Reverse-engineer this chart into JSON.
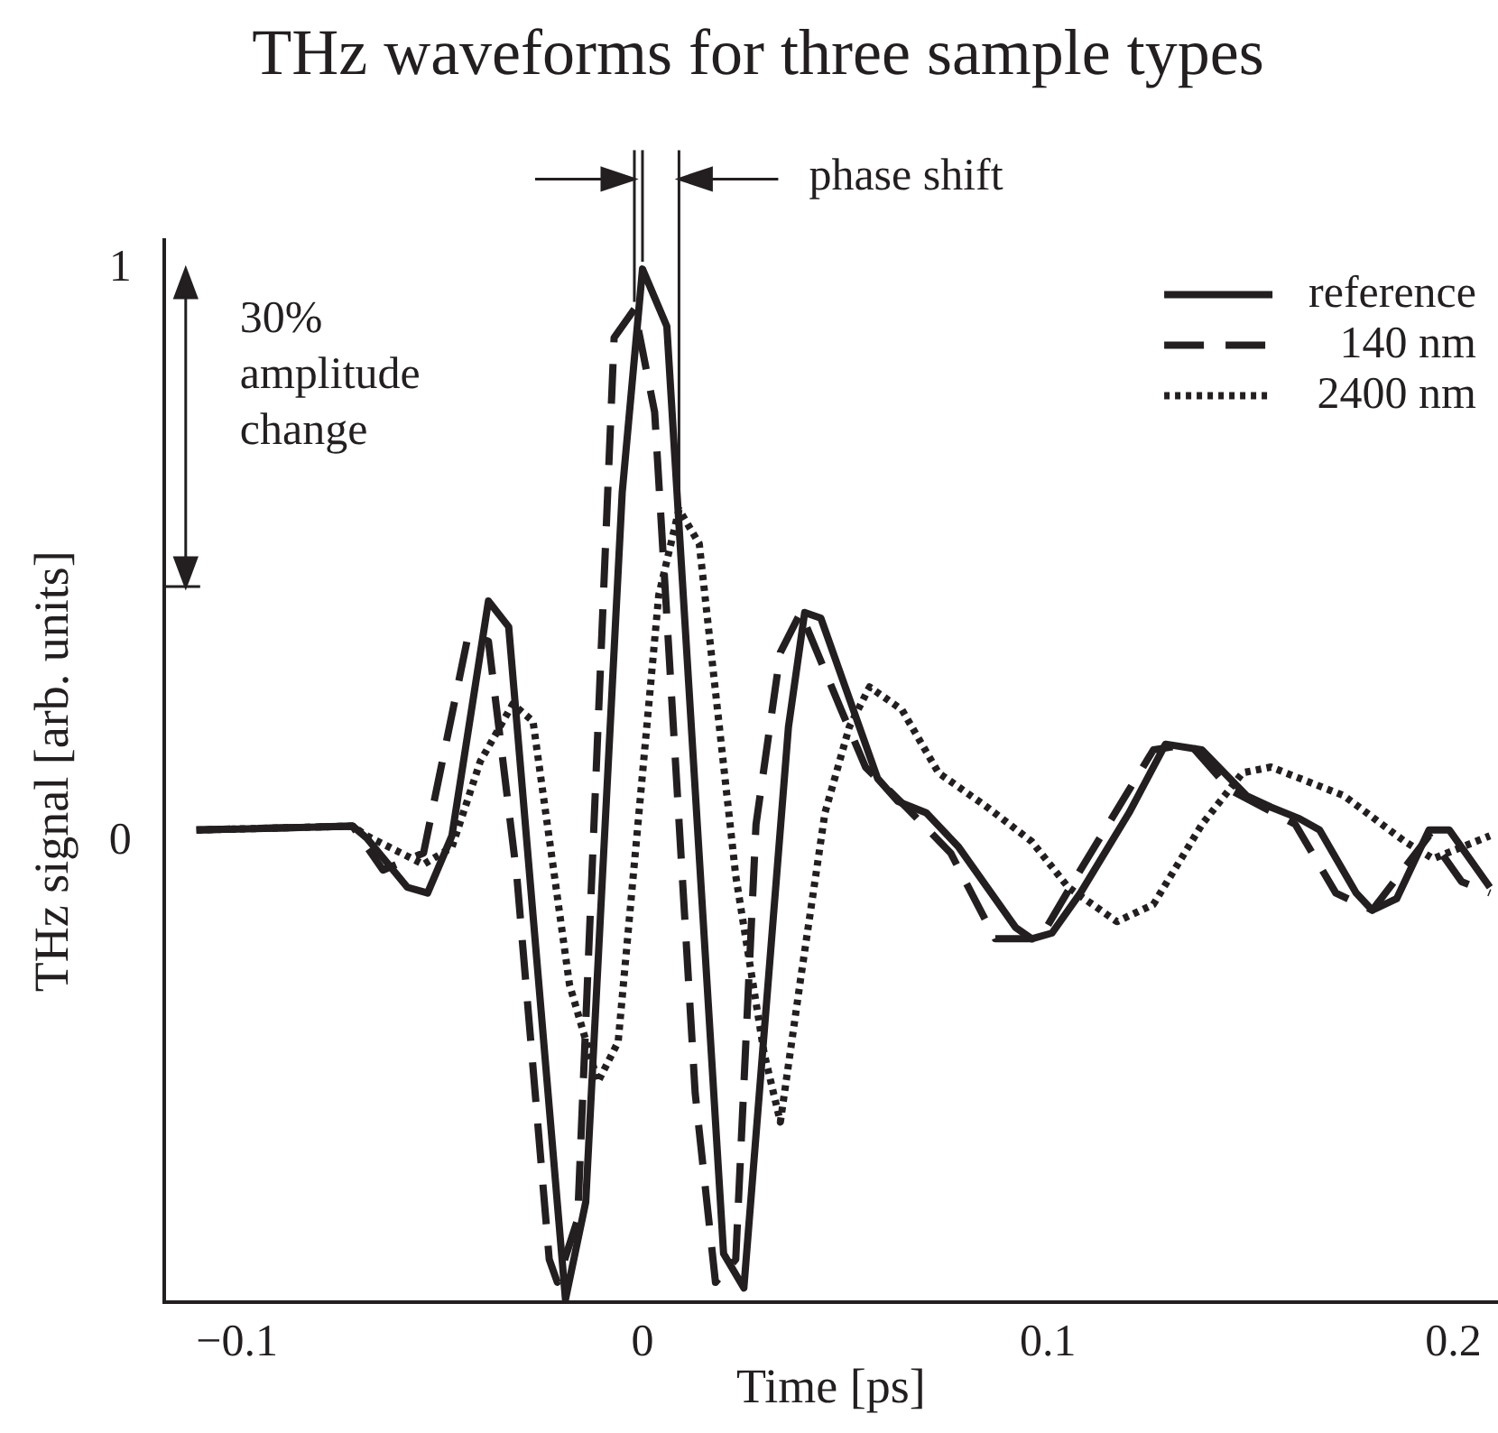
{
  "chart_data": {
    "type": "line",
    "title": "THz waveforms for three sample types",
    "xlabel": "Time [ps]",
    "ylabel": "THz signal [arb. units]",
    "xlim": [
      -0.118,
      0.211
    ],
    "xticks": [
      {
        "value": -0.1,
        "label": "−0.1"
      },
      0,
      0.1,
      0.2
    ],
    "ylim": [
      -0.805,
      1.05
    ],
    "yticks": [
      0,
      1
    ],
    "grid": false,
    "legend": "top right",
    "marker": "none",
    "series": [
      {
        "name": "reference",
        "color": "#231f20",
        "line_style": "solid",
        "x": [
          -0.11,
          -0.0715,
          -0.068,
          -0.058,
          -0.053,
          -0.047,
          -0.038,
          -0.033,
          -0.019,
          -0.014,
          -0.005,
          0.0,
          0.006,
          0.02,
          0.025,
          0.036,
          0.04,
          0.044,
          0.05,
          0.058,
          0.063,
          0.07,
          0.078,
          0.092,
          0.096,
          0.101,
          0.108,
          0.12,
          0.129,
          0.138,
          0.149,
          0.155,
          0.162,
          0.167,
          0.176,
          0.18,
          0.186,
          0.194,
          0.199,
          0.209
        ],
        "values": [
          0.02,
          0.027,
          0.006,
          -0.08,
          -0.09,
          0.01,
          0.42,
          0.375,
          -0.8,
          -0.63,
          0.61,
          1.0,
          0.9,
          -0.72,
          -0.78,
          0.2,
          0.4,
          0.39,
          0.27,
          0.11,
          0.07,
          0.05,
          -0.01,
          -0.15,
          -0.17,
          -0.16,
          -0.09,
          0.05,
          0.17,
          0.16,
          0.08,
          0.06,
          0.04,
          0.02,
          -0.09,
          -0.12,
          -0.1,
          0.02,
          0.02,
          -0.08
        ]
      },
      {
        "name": "140 nm",
        "color": "#231f20",
        "line_style": "dashed",
        "x": [
          -0.11,
          -0.0715,
          -0.064,
          -0.054,
          -0.043,
          -0.038,
          -0.031,
          -0.023,
          -0.021,
          -0.016,
          -0.007,
          -0.002,
          0.003,
          0.013,
          0.018,
          0.023,
          0.028,
          0.034,
          0.039,
          0.049,
          0.055,
          0.065,
          0.076,
          0.087,
          0.098,
          0.108,
          0.12,
          0.126,
          0.135,
          0.145,
          0.161,
          0.171,
          0.18,
          0.194,
          0.202,
          0.209
        ],
        "values": [
          0.02,
          0.027,
          -0.05,
          -0.02,
          0.36,
          0.35,
          -0.06,
          -0.73,
          -0.77,
          -0.66,
          0.88,
          0.93,
          0.75,
          -0.44,
          -0.77,
          -0.73,
          0.03,
          0.33,
          0.4,
          0.23,
          0.13,
          0.06,
          -0.02,
          -0.17,
          -0.17,
          -0.05,
          0.09,
          0.16,
          0.17,
          0.09,
          0.03,
          -0.09,
          -0.12,
          0.01,
          -0.07,
          -0.09
        ]
      },
      {
        "name": "2400 nm",
        "color": "#231f20",
        "line_style": "dotted",
        "x": [
          -0.11,
          -0.0715,
          -0.068,
          -0.054,
          -0.047,
          -0.04,
          -0.032,
          -0.027,
          -0.018,
          -0.011,
          -0.006,
          0.004,
          0.009,
          0.014,
          0.023,
          0.03,
          0.034,
          0.039,
          0.045,
          0.051,
          0.056,
          0.064,
          0.073,
          0.085,
          0.096,
          0.105,
          0.117,
          0.126,
          0.138,
          0.148,
          0.155,
          0.173,
          0.188,
          0.195,
          0.209
        ],
        "values": [
          0.02,
          0.027,
          0.01,
          -0.04,
          -0.01,
          0.14,
          0.24,
          0.21,
          -0.25,
          -0.42,
          -0.35,
          0.43,
          0.58,
          0.52,
          -0.06,
          -0.37,
          -0.49,
          -0.24,
          0.05,
          0.2,
          0.27,
          0.23,
          0.12,
          0.06,
          0.0,
          -0.08,
          -0.14,
          -0.11,
          0.03,
          0.12,
          0.13,
          0.08,
          0.0,
          -0.03,
          0.01
        ]
      }
    ],
    "annotations": [
      "30% amplitude change",
      "phase shift"
    ]
  }
}
